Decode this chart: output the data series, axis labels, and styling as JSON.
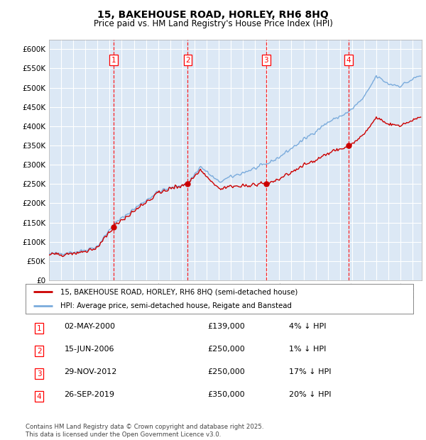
{
  "title": "15, BAKEHOUSE ROAD, HORLEY, RH6 8HQ",
  "subtitle": "Price paid vs. HM Land Registry's House Price Index (HPI)",
  "ylim": [
    0,
    625000
  ],
  "yticks": [
    0,
    50000,
    100000,
    150000,
    200000,
    250000,
    300000,
    350000,
    400000,
    450000,
    500000,
    550000,
    600000
  ],
  "xlim_start": 1995.0,
  "xlim_end": 2025.75,
  "background_color": "#dce8f5",
  "plot_bg_color": "#dce8f5",
  "grid_color": "#ffffff",
  "red_line_color": "#cc0000",
  "blue_line_color": "#7aabdc",
  "sale_color": "#cc0000",
  "transactions": [
    {
      "num": 1,
      "date_str": "02-MAY-2000",
      "year": 2000.33,
      "price": 139000,
      "pct": "4%",
      "dir": "↓"
    },
    {
      "num": 2,
      "date_str": "15-JUN-2006",
      "year": 2006.45,
      "price": 250000,
      "pct": "1%",
      "dir": "↓"
    },
    {
      "num": 3,
      "date_str": "29-NOV-2012",
      "year": 2012.91,
      "price": 250000,
      "pct": "17%",
      "dir": "↓"
    },
    {
      "num": 4,
      "date_str": "26-SEP-2019",
      "year": 2019.73,
      "price": 350000,
      "pct": "20%",
      "dir": "↓"
    }
  ],
  "legend_line1": "15, BAKEHOUSE ROAD, HORLEY, RH6 8HQ (semi-detached house)",
  "legend_line2": "HPI: Average price, semi-detached house, Reigate and Banstead",
  "footer": "Contains HM Land Registry data © Crown copyright and database right 2025.\nThis data is licensed under the Open Government Licence v3.0.",
  "table_rows": [
    {
      "num": 1,
      "date": "02-MAY-2000",
      "price": "£139,000",
      "note": "4% ↓ HPI"
    },
    {
      "num": 2,
      "date": "15-JUN-2006",
      "price": "£250,000",
      "note": "1% ↓ HPI"
    },
    {
      "num": 3,
      "date": "29-NOV-2012",
      "price": "£250,000",
      "note": "17% ↓ HPI"
    },
    {
      "num": 4,
      "date": "26-SEP-2019",
      "price": "£350,000",
      "note": "20% ↓ HPI"
    }
  ]
}
